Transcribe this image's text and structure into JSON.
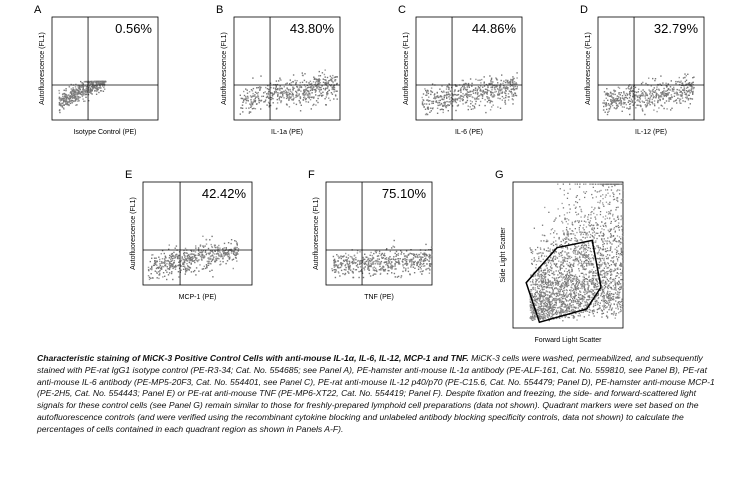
{
  "panels": [
    {
      "letter": "A",
      "percent": "0.56%",
      "xlabel": "Isotype Control (PE)",
      "ylabel": "Autofluorescence (FL1)",
      "chart_data": {
        "type": "scatter",
        "title": "",
        "xlabel": "Isotype Control (PE)",
        "ylabel": "Autofluorescence (FL1)",
        "gated_percent_upper_right": 0.56,
        "cloud_x_range": [
          0.06,
          0.5
        ],
        "cloud_y_range": [
          0.1,
          0.38
        ],
        "cloud_slope": 0.55
      }
    },
    {
      "letter": "B",
      "percent": "43.80%",
      "xlabel": "IL-1a (PE)",
      "ylabel": "Autofluorescence (FL1)",
      "chart_data": {
        "type": "scatter",
        "title": "",
        "xlabel": "IL-1a (PE)",
        "ylabel": "Autofluorescence (FL1)",
        "gated_percent_upper_right": 43.8,
        "cloud_x_range": [
          0.05,
          0.97
        ],
        "cloud_y_range": [
          0.08,
          0.5
        ],
        "cloud_slope": 0.18
      }
    },
    {
      "letter": "C",
      "percent": "44.86%",
      "xlabel": "IL-6 (PE)",
      "ylabel": "Autofluorescence (FL1)",
      "chart_data": {
        "type": "scatter",
        "title": "",
        "xlabel": "IL-6 (PE)",
        "ylabel": "Autofluorescence (FL1)",
        "gated_percent_upper_right": 44.86,
        "cloud_x_range": [
          0.05,
          0.95
        ],
        "cloud_y_range": [
          0.08,
          0.5
        ],
        "cloud_slope": 0.15
      }
    },
    {
      "letter": "D",
      "percent": "32.79%",
      "xlabel": "IL-12 (PE)",
      "ylabel": "Autofluorescence (FL1)",
      "chart_data": {
        "type": "scatter",
        "title": "",
        "xlabel": "IL-12 (PE)",
        "ylabel": "Autofluorescence (FL1)",
        "gated_percent_upper_right": 32.79,
        "cloud_x_range": [
          0.04,
          0.9
        ],
        "cloud_y_range": [
          0.08,
          0.5
        ],
        "cloud_slope": 0.12
      }
    },
    {
      "letter": "E",
      "percent": "42.42%",
      "xlabel": "MCP-1 (PE)",
      "ylabel": "Autofluorescence (FL1)",
      "chart_data": {
        "type": "scatter",
        "title": "",
        "xlabel": "MCP-1 (PE)",
        "ylabel": "Autofluorescence (FL1)",
        "gated_percent_upper_right": 42.42,
        "cloud_x_range": [
          0.04,
          0.87
        ],
        "cloud_y_range": [
          0.08,
          0.48
        ],
        "cloud_slope": 0.2
      }
    },
    {
      "letter": "F",
      "percent": "75.10%",
      "xlabel": "TNF (PE)",
      "ylabel": "Autofluorescence (FL1)",
      "chart_data": {
        "type": "scatter",
        "title": "",
        "xlabel": "TNF (PE)",
        "ylabel": "Autofluorescence (FL1)",
        "gated_percent_upper_right": 75.1,
        "cloud_x_range": [
          0.05,
          0.99
        ],
        "cloud_y_range": [
          0.1,
          0.47
        ],
        "cloud_slope": 0.06
      }
    },
    {
      "letter": "G",
      "percent": "",
      "xlabel": "Forward Light Scatter",
      "ylabel": "Side Light Scatter",
      "chart_data": {
        "type": "scatter",
        "title": "",
        "xlabel": "Forward Light Scatter",
        "ylabel": "Side Light Scatter",
        "gate_polygon": [
          [
            0.12,
            0.31
          ],
          [
            0.24,
            0.04
          ],
          [
            0.67,
            0.13
          ],
          [
            0.8,
            0.28
          ],
          [
            0.72,
            0.6
          ],
          [
            0.4,
            0.55
          ]
        ]
      }
    }
  ],
  "caption": {
    "title": "Characteristic staining of MiCK-3 Positive Control Cells with anti-mouse IL-1α, IL-6, IL-12, MCP-1 and TNF.",
    "body": "MiCK-3 cells were washed, permeabilized, and subsequently stained with PE-rat IgG1 isotype control (PE-R3-34; Cat. No. 554685; see Panel A), PE-hamster anti-mouse IL-1α antibody (PE-ALF-161, Cat. No. 559810, see Panel B), PE-rat anti-mouse IL-6 antibody (PE-MP5-20F3, Cat. No. 554401, see Panel C), PE-rat anti-mouse IL-12 p40/p70 (PE-C15.6, Cat. No. 554479; Panel D), PE-hamster anti-mouse MCP-1 (PE-2H5, Cat. No. 554443; Panel E) or PE-rat anti-mouse TNF (PE-MP6-XT22, Cat. No. 554419; Panel F). Despite fixation and freezing, the side- and forward-scattered light signals for these control cells (see Panel G) remain similar to those for freshly-prepared lymphoid cell preparations (data not shown). Quadrant markers were set based on the autofluorescence controls (and were verified using the recombinant cytokine blocking and unlabeled antibody blocking specificity controls, data not shown) to calculate the percentages of cells contained in each quadrant region as shown in Panels A-F)."
  },
  "colors": {
    "dots": "#777777",
    "dots_light": "#9a9a9a",
    "lines": "#000000"
  }
}
